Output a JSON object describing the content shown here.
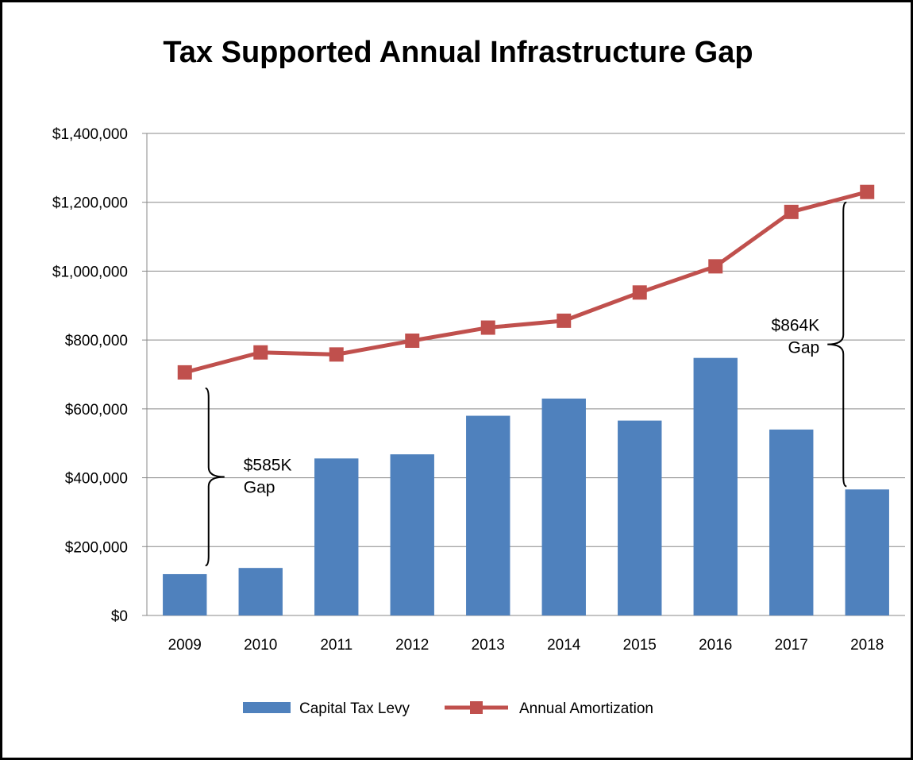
{
  "chart_data": {
    "type": "bar",
    "title": "Tax Supported Annual Infrastructure Gap",
    "categories": [
      "2009",
      "2010",
      "2011",
      "2012",
      "2013",
      "2014",
      "2015",
      "2016",
      "2017",
      "2018"
    ],
    "series": [
      {
        "name": "Capital Tax Levy",
        "type": "bar",
        "color": "#4F81BD",
        "values": [
          120000,
          138000,
          456000,
          468000,
          580000,
          630000,
          566000,
          748000,
          540000,
          366000
        ]
      },
      {
        "name": "Annual Amortization",
        "type": "line",
        "color": "#C0504D",
        "marker": "square",
        "values": [
          706000,
          764000,
          758000,
          798000,
          836000,
          856000,
          938000,
          1014000,
          1172000,
          1230000
        ]
      }
    ],
    "ylim": [
      0,
      1400000
    ],
    "yticks": [
      0,
      200000,
      400000,
      600000,
      800000,
      1000000,
      1200000,
      1400000
    ],
    "ytick_labels": [
      "$0",
      "$200,000",
      "$400,000",
      "$600,000",
      "$800,000",
      "$1,000,000",
      "$1,200,000",
      "$1,400,000"
    ],
    "xlabel": "",
    "ylabel": "",
    "grid": true,
    "legend_position": "bottom",
    "annotations": [
      {
        "line1": "$585K",
        "line2": "Gap",
        "category": "2009",
        "side": "right",
        "from_value": 145000,
        "to_value": 660000
      },
      {
        "line1": "$864K",
        "line2": "Gap",
        "category": "2018",
        "side": "left",
        "from_value": 375000,
        "to_value": 1200000
      }
    ]
  }
}
